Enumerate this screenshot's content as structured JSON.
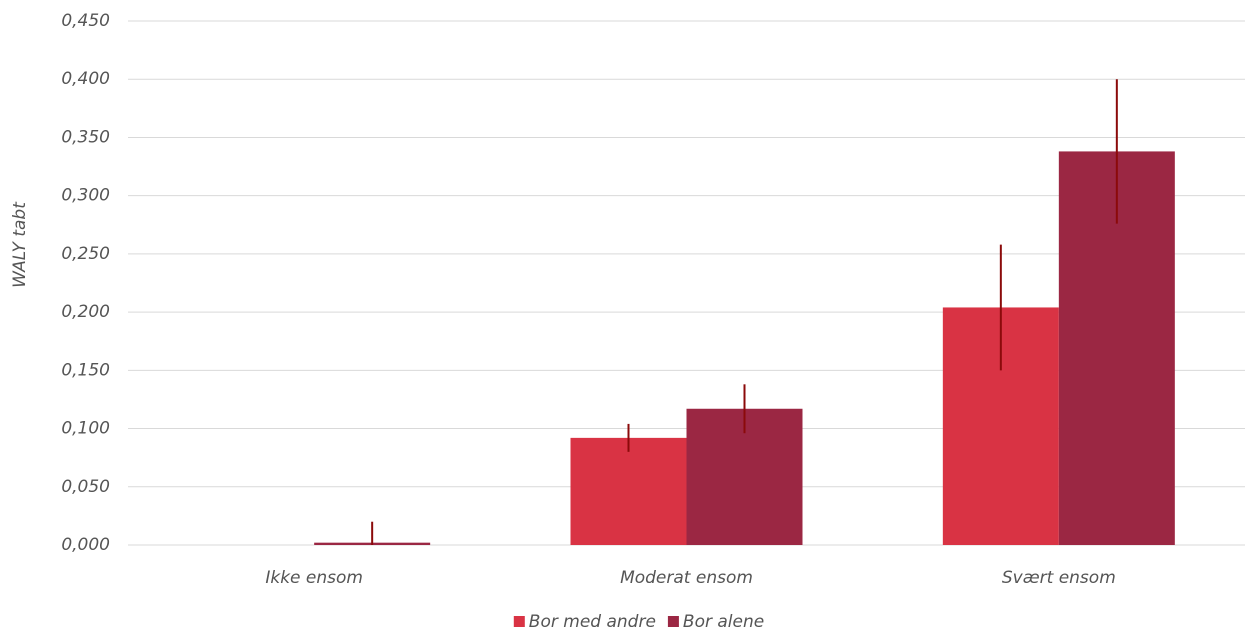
{
  "chart_data": {
    "type": "bar",
    "y_label": "WALY tabt",
    "categories": [
      "Ikke ensom",
      "Moderat ensom",
      "Svært ensom"
    ],
    "series": [
      {
        "name": "Bor med andre",
        "color": "#d93344",
        "values": [
          0,
          0.092,
          0.204
        ],
        "errors": [
          null,
          0.012,
          0.054
        ]
      },
      {
        "name": "Bor alene",
        "color": "#9b2743",
        "values": [
          0.002,
          0.117,
          0.338
        ],
        "errors": [
          0.018,
          0.021,
          0.062
        ]
      }
    ],
    "error_color": "#8b0a0a",
    "ylim": [
      0,
      0.45
    ],
    "yticks": [
      {
        "value": 0,
        "label": "0,000"
      },
      {
        "value": 0.05,
        "label": "0,050"
      },
      {
        "value": 0.1,
        "label": "0,100"
      },
      {
        "value": 0.15,
        "label": "0,150"
      },
      {
        "value": 0.2,
        "label": "0,200"
      },
      {
        "value": 0.25,
        "label": "0,250"
      },
      {
        "value": 0.3,
        "label": "0,300"
      },
      {
        "value": 0.35,
        "label": "0,350"
      },
      {
        "value": 0.4,
        "label": "0,400"
      },
      {
        "value": 0.45,
        "label": "0,450"
      }
    ],
    "grid": true,
    "legend": "bottom"
  }
}
